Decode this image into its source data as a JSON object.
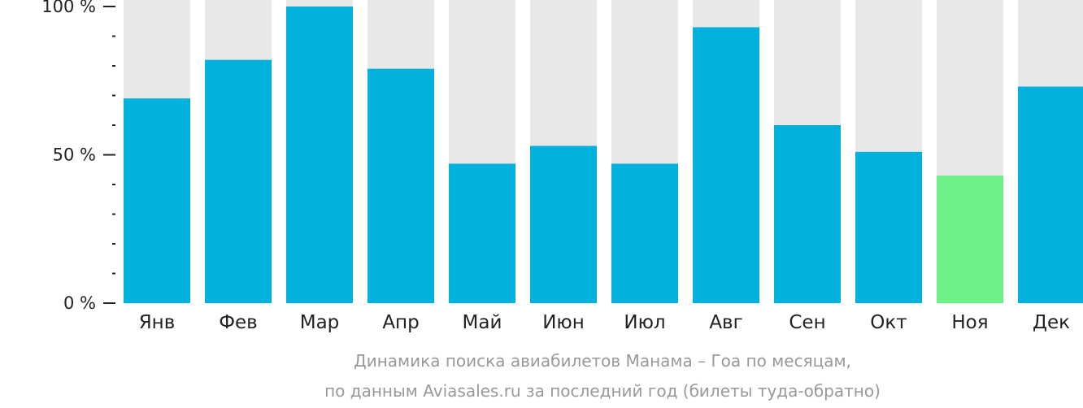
{
  "chart_data": {
    "type": "bar",
    "categories": [
      "Янв",
      "Фев",
      "Мар",
      "Апр",
      "Май",
      "Июн",
      "Июл",
      "Авг",
      "Сен",
      "Окт",
      "Ноя",
      "Дек"
    ],
    "values": [
      69,
      82,
      100,
      79,
      47,
      53,
      47,
      93,
      60,
      51,
      43,
      73
    ],
    "ylim": [
      0,
      100
    ],
    "yticks": [
      {
        "value": 100,
        "label": "100 %"
      },
      {
        "value": 50,
        "label": "50 %"
      },
      {
        "value": 0,
        "label": "0 %"
      }
    ],
    "minor_tick_step": 10,
    "highlight_index": 10,
    "colors": {
      "bar": "#00b0dd",
      "highlight": "#6cf087",
      "background_bar": "#e8e8e8",
      "axis": "#222222"
    },
    "caption_lines": [
      "Динамика поиска авиабилетов Манама – Гоа по месяцам,",
      "по данным Aviasales.ru за последний год (билеты туда-обратно)"
    ]
  }
}
